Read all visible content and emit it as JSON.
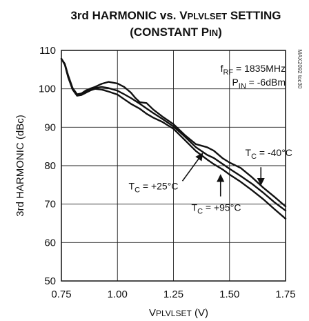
{
  "chart_data": {
    "type": "line",
    "title": {
      "line1_a": "3rd HARMONIC vs. V",
      "line1_sub": "PLVLSET",
      "line1_b": " SETTING",
      "line2_a": "(CONSTANT P",
      "line2_sub": "IN",
      "line2_b": ")"
    },
    "xlabel": {
      "main": "V",
      "sub": "PLVLSET",
      "unit": " (V)"
    },
    "ylabel": "3rd HARMONIC (dBc)",
    "xlim": [
      0.75,
      1.75
    ],
    "ylim": [
      50,
      110
    ],
    "xticks": [
      0.75,
      1.0,
      1.25,
      1.5,
      1.75
    ],
    "xtick_labels": [
      "0.75",
      "1.00",
      "1.25",
      "1.50",
      "1.75"
    ],
    "yticks": [
      50,
      60,
      70,
      80,
      90,
      100,
      110
    ],
    "ytick_labels": [
      "50",
      "60",
      "70",
      "80",
      "90",
      "100",
      "110"
    ],
    "grid": true,
    "conditions": [
      {
        "main": "f",
        "sub": "RF",
        "rest": " = 1835MHz"
      },
      {
        "main": "P",
        "sub": "IN",
        "rest": " = -6dBm"
      }
    ],
    "graph_id": "MAX2092 toc30",
    "series": [
      {
        "name": "TC = -40°C",
        "label": {
          "main": "T",
          "sub": "C",
          "rest": " = -40°C"
        },
        "points": [
          [
            0.75,
            107.8
          ],
          [
            0.765,
            106.5
          ],
          [
            0.78,
            103.5
          ],
          [
            0.8,
            100.2
          ],
          [
            0.82,
            98.6
          ],
          [
            0.84,
            98.8
          ],
          [
            0.86,
            99.6
          ],
          [
            0.88,
            100.1
          ],
          [
            0.9,
            100.5
          ],
          [
            0.93,
            101.3
          ],
          [
            0.96,
            101.8
          ],
          [
            1.0,
            101.4
          ],
          [
            1.03,
            100.5
          ],
          [
            1.06,
            99.0
          ],
          [
            1.08,
            97.6
          ],
          [
            1.1,
            96.5
          ],
          [
            1.13,
            96.3
          ],
          [
            1.16,
            94.6
          ],
          [
            1.2,
            92.8
          ],
          [
            1.25,
            90.8
          ],
          [
            1.3,
            88.0
          ],
          [
            1.35,
            85.6
          ],
          [
            1.4,
            84.8
          ],
          [
            1.43,
            83.9
          ],
          [
            1.47,
            81.9
          ],
          [
            1.5,
            80.8
          ],
          [
            1.55,
            79.4
          ],
          [
            1.6,
            77.0
          ],
          [
            1.65,
            74.3
          ],
          [
            1.7,
            71.9
          ],
          [
            1.75,
            69.4
          ]
        ]
      },
      {
        "name": "TC = +25°C",
        "label": {
          "main": "T",
          "sub": "C",
          "rest": " = +25°C"
        },
        "points": [
          [
            0.75,
            107.8
          ],
          [
            0.765,
            106.5
          ],
          [
            0.78,
            103.4
          ],
          [
            0.8,
            100.0
          ],
          [
            0.82,
            98.4
          ],
          [
            0.84,
            98.6
          ],
          [
            0.86,
            99.2
          ],
          [
            0.88,
            99.8
          ],
          [
            0.9,
            100.2
          ],
          [
            0.93,
            100.5
          ],
          [
            0.96,
            100.2
          ],
          [
            1.0,
            99.5
          ],
          [
            1.03,
            98.6
          ],
          [
            1.06,
            97.6
          ],
          [
            1.1,
            96.1
          ],
          [
            1.13,
            94.9
          ],
          [
            1.16,
            93.7
          ],
          [
            1.2,
            92.2
          ],
          [
            1.25,
            90.2
          ],
          [
            1.3,
            87.6
          ],
          [
            1.35,
            84.8
          ],
          [
            1.4,
            82.8
          ],
          [
            1.43,
            82.0
          ],
          [
            1.47,
            80.4
          ],
          [
            1.5,
            79.2
          ],
          [
            1.55,
            77.3
          ],
          [
            1.6,
            75.3
          ],
          [
            1.65,
            73.0
          ],
          [
            1.7,
            70.5
          ],
          [
            1.75,
            68.3
          ]
        ]
      },
      {
        "name": "TC = +95°C",
        "label": {
          "main": "T",
          "sub": "C",
          "rest": " = +95°C"
        },
        "points": [
          [
            0.75,
            107.8
          ],
          [
            0.765,
            106.3
          ],
          [
            0.78,
            103.0
          ],
          [
            0.8,
            99.8
          ],
          [
            0.82,
            98.2
          ],
          [
            0.84,
            98.4
          ],
          [
            0.86,
            99.0
          ],
          [
            0.88,
            99.6
          ],
          [
            0.9,
            100.0
          ],
          [
            0.93,
            99.8
          ],
          [
            0.96,
            99.3
          ],
          [
            1.0,
            98.5
          ],
          [
            1.03,
            97.3
          ],
          [
            1.06,
            96.1
          ],
          [
            1.1,
            94.8
          ],
          [
            1.13,
            93.5
          ],
          [
            1.16,
            92.5
          ],
          [
            1.2,
            91.4
          ],
          [
            1.25,
            89.6
          ],
          [
            1.3,
            86.7
          ],
          [
            1.35,
            83.8
          ],
          [
            1.4,
            81.6
          ],
          [
            1.43,
            80.4
          ],
          [
            1.47,
            79.0
          ],
          [
            1.5,
            77.7
          ],
          [
            1.55,
            75.8
          ],
          [
            1.6,
            73.6
          ],
          [
            1.65,
            71.3
          ],
          [
            1.7,
            68.7
          ],
          [
            1.75,
            66.2
          ]
        ]
      }
    ],
    "annotations": [
      {
        "series": 0,
        "text_x": 1.57,
        "text_y": 82.5,
        "arrow_from": [
          1.64,
          79.6
        ],
        "arrow_to": [
          1.64,
          75.0
        ]
      },
      {
        "series": 1,
        "text_x": 1.05,
        "text_y": 73.8,
        "arrow_from": [
          1.29,
          76.0
        ],
        "arrow_to": [
          1.38,
          83.2
        ]
      },
      {
        "series": 2,
        "text_x": 1.33,
        "text_y": 68.2,
        "arrow_from": [
          1.46,
          72.0
        ],
        "arrow_to": [
          1.46,
          77.6
        ]
      }
    ]
  }
}
